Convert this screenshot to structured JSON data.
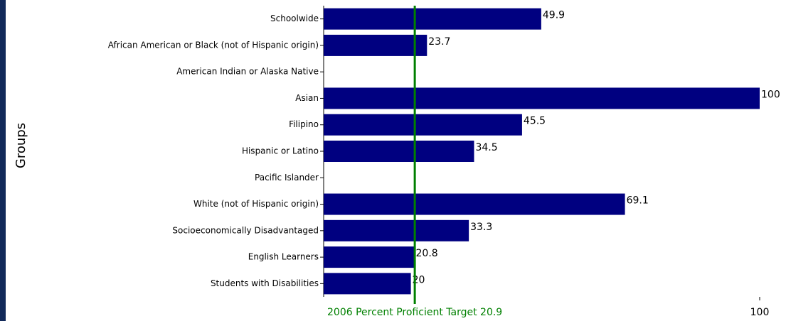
{
  "chart_data": {
    "type": "bar",
    "orientation": "horizontal",
    "y_label": "Groups",
    "categories": [
      "Schoolwide",
      "African American or Black (not of Hispanic origin)",
      "American Indian or Alaska Native",
      "Asian",
      "Filipino",
      "Hispanic or Latino",
      "Pacific Islander",
      "White (not of Hispanic origin)",
      "Socioeconomically Disadvantaged",
      "English Learners",
      "Students with Disabilities"
    ],
    "values": [
      49.9,
      23.7,
      null,
      100,
      45.5,
      34.5,
      null,
      69.1,
      33.3,
      20.8,
      20
    ],
    "color": "#000080",
    "xlim": [
      0,
      100
    ],
    "xticks": [
      100
    ],
    "target_label": "2006 Percent Proficient Target",
    "target": 20.9,
    "target_color": "#008000"
  }
}
